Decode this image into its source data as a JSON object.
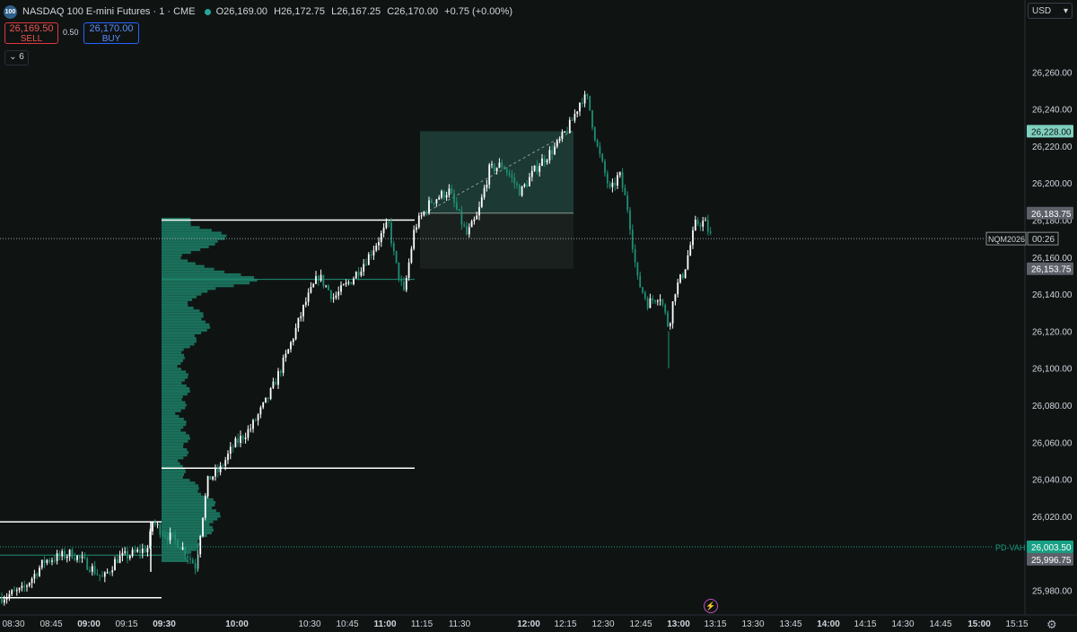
{
  "header": {
    "logo": "100",
    "title": "NASDAQ 100 E-mini Futures · 1 · CME",
    "open": "O26,169.00",
    "high": "H26,172.75",
    "low": "L26,167.25",
    "close": "C26,170.00",
    "change": "+0.75 (+0.00%)"
  },
  "trade": {
    "sell_price": "26,169.50",
    "sell_label": "SELL",
    "spread": "0.50",
    "buy_price": "26,170.00",
    "buy_label": "BUY"
  },
  "collapse_label": "6",
  "currency": "USD",
  "colors": {
    "up": "#26a69a",
    "down": "#ef5350",
    "profile": "#1f8f74",
    "bg": "#0f1413",
    "accent": "#26a69a"
  },
  "chart_data": {
    "type": "candlestick",
    "symbol": "NQM2026",
    "countdown": "00:26",
    "ylim": [
      25970,
      26270
    ],
    "y_ticks": [
      25980,
      26000,
      26020,
      26040,
      26060,
      26080,
      26100,
      26120,
      26140,
      26160,
      26180,
      26200,
      26220,
      26240,
      26260
    ],
    "y_tick_labels": [
      "25,980.00",
      "26,000.00",
      "26,020.00",
      "26,040.00",
      "26,060.00",
      "26,080.00",
      "26,100.00",
      "26,120.00",
      "26,140.00",
      "26,160.00",
      "26,180.00",
      "26,200.00",
      "26,220.00",
      "26,240.00",
      "26,260.00"
    ],
    "x_tick_labels": [
      "08:30",
      "08:45",
      "09:00",
      "09:15",
      "09:30",
      "10:00",
      "10:30",
      "10:45",
      "11:00",
      "11:15",
      "11:30",
      "12:00",
      "12:15",
      "12:30",
      "12:45",
      "13:00",
      "13:15",
      "13:30",
      "13:45",
      "14:00",
      "14:15",
      "14:30",
      "14:45",
      "15:00",
      "15:15"
    ],
    "price_markers": [
      {
        "label": "26,228.00",
        "value": 26228,
        "color": "#7fd1bf"
      },
      {
        "label": "26,183.75",
        "value": 26183.75,
        "color": "#5d6068"
      },
      {
        "label": "26,153.75",
        "value": 26153.75,
        "color": "#5d6068"
      },
      {
        "label": "26,003.50",
        "value": 26003.5,
        "color": "#17a085"
      },
      {
        "label": "25,996.75",
        "value": 25996.75,
        "color": "#5d6068"
      }
    ],
    "last_price": 26170,
    "pd_vah_label": "PD-VAH",
    "pd_vah": 26003.5,
    "path": [
      [
        0,
        25976
      ],
      [
        25,
        25980
      ],
      [
        50,
        25996
      ],
      [
        80,
        26000
      ],
      [
        100,
        25993
      ],
      [
        115,
        25986
      ],
      [
        130,
        25997
      ],
      [
        150,
        26000
      ],
      [
        165,
        26003
      ],
      [
        170,
        26017
      ],
      [
        180,
        26012
      ],
      [
        200,
        26005
      ],
      [
        218,
        25993
      ],
      [
        225,
        26018
      ],
      [
        232,
        26040
      ],
      [
        245,
        26045
      ],
      [
        260,
        26058
      ],
      [
        280,
        26068
      ],
      [
        300,
        26085
      ],
      [
        320,
        26108
      ],
      [
        340,
        26135
      ],
      [
        355,
        26150
      ],
      [
        372,
        26138
      ],
      [
        392,
        26148
      ],
      [
        410,
        26160
      ],
      [
        425,
        26172
      ],
      [
        433,
        26178
      ],
      [
        440,
        26158
      ],
      [
        450,
        26140
      ],
      [
        462,
        26176
      ],
      [
        480,
        26190
      ],
      [
        500,
        26196
      ],
      [
        520,
        26172
      ],
      [
        532,
        26182
      ],
      [
        545,
        26207
      ],
      [
        560,
        26210
      ],
      [
        580,
        26195
      ],
      [
        600,
        26210
      ],
      [
        620,
        26220
      ],
      [
        636,
        26232
      ],
      [
        648,
        26246
      ],
      [
        655,
        26245
      ],
      [
        665,
        26220
      ],
      [
        680,
        26195
      ],
      [
        690,
        26205
      ],
      [
        700,
        26185
      ],
      [
        710,
        26148
      ],
      [
        722,
        26135
      ],
      [
        735,
        26140
      ],
      [
        745,
        26122
      ],
      [
        752,
        26142
      ],
      [
        762,
        26152
      ],
      [
        775,
        26178
      ],
      [
        785,
        26179
      ],
      [
        793,
        26170
      ]
    ],
    "annotations": {
      "rect_top": {
        "x0": 468,
        "x1": 639,
        "top": 26228,
        "bottom": 26183.75
      },
      "rect_bottom": {
        "x0": 468,
        "x1": 639,
        "top": 26183.75,
        "bottom": 26153.75
      },
      "levels": [
        {
          "x0": 180,
          "x1": 462,
          "value": 26180
        },
        {
          "x0": 180,
          "x1": 462,
          "value": 26046
        },
        {
          "x0": 0,
          "x1": 180,
          "value": 26017
        },
        {
          "x0": 0,
          "x1": 180,
          "value": 25976
        },
        {
          "x0": 180,
          "x1": 462,
          "value": 26148,
          "teal": true
        },
        {
          "x0": 0,
          "x1": 180,
          "value": 25999,
          "teal": true
        }
      ]
    }
  }
}
